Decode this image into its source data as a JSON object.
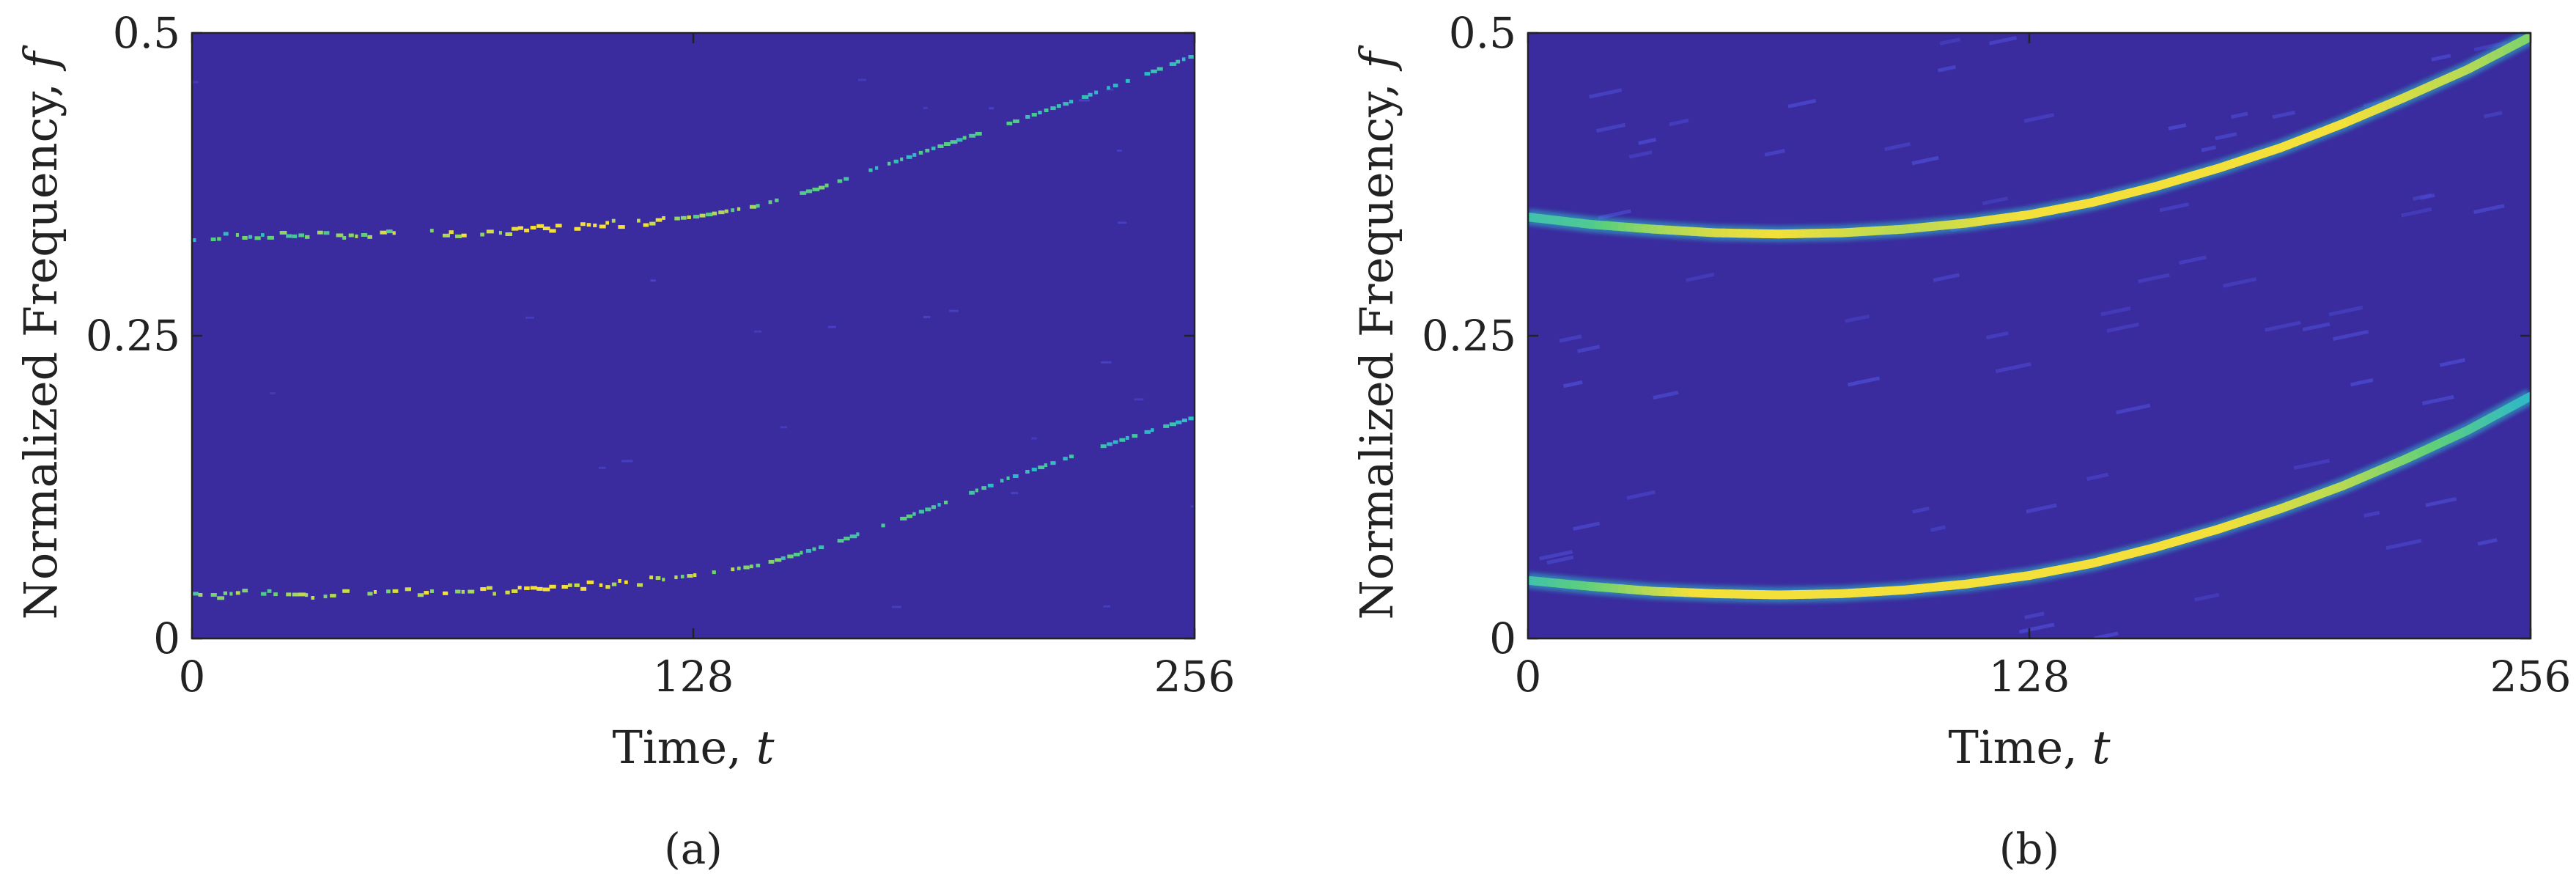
{
  "colors": {
    "background": "#3a2b9e",
    "low": "#4a46cc",
    "mid": "#2fb8c8",
    "high": "#5fd07a",
    "peak": "#f4e03a",
    "axis": "#222222"
  },
  "chart_data": [
    {
      "type": "heatmap",
      "caption": "(a)",
      "xlabel_text": "Time, ",
      "xlabel_var": "t",
      "ylabel_text": "Normalized Frequency, ",
      "ylabel_var": "f",
      "xlim": [
        0,
        256
      ],
      "ylim": [
        0,
        0.5
      ],
      "xticks": [
        0,
        128,
        256
      ],
      "xtick_labels": [
        "0",
        "128",
        "256"
      ],
      "yticks": [
        0,
        0.25,
        0.5
      ],
      "ytick_labels": [
        "0",
        "0.25",
        "0.5"
      ],
      "grid": false,
      "colormap": "parula",
      "ridge_style": "sparse",
      "ridges": [
        {
          "x": [
            0,
            16,
            32,
            48,
            64,
            80,
            96,
            112,
            128,
            144,
            160,
            176,
            192,
            208,
            224,
            240,
            256
          ],
          "y": [
            0.33,
            0.333,
            0.332,
            0.333,
            0.334,
            0.336,
            0.34,
            0.343,
            0.348,
            0.357,
            0.372,
            0.39,
            0.408,
            0.425,
            0.443,
            0.462,
            0.482
          ],
          "intensity": [
            0.5,
            0.55,
            0.6,
            0.7,
            0.75,
            0.85,
            0.95,
            0.9,
            0.7,
            0.6,
            0.55,
            0.5,
            0.5,
            0.5,
            0.45,
            0.45,
            0.4
          ]
        },
        {
          "x": [
            0,
            16,
            32,
            48,
            64,
            80,
            96,
            112,
            128,
            144,
            160,
            176,
            192,
            208,
            224,
            240,
            256
          ],
          "y": [
            0.035,
            0.037,
            0.036,
            0.037,
            0.038,
            0.04,
            0.043,
            0.046,
            0.052,
            0.06,
            0.075,
            0.093,
            0.112,
            0.132,
            0.15,
            0.167,
            0.183
          ],
          "intensity": [
            0.6,
            0.65,
            0.7,
            0.75,
            0.8,
            0.9,
            0.95,
            0.85,
            0.7,
            0.6,
            0.55,
            0.5,
            0.5,
            0.45,
            0.45,
            0.45,
            0.4
          ]
        }
      ]
    },
    {
      "type": "heatmap",
      "caption": "(b)",
      "xlabel_text": "Time, ",
      "xlabel_var": "t",
      "ylabel_text": "Normalized Frequency, ",
      "ylabel_var": "f",
      "xlim": [
        0,
        256
      ],
      "ylim": [
        0,
        0.5
      ],
      "xticks": [
        0,
        128,
        256
      ],
      "xtick_labels": [
        "0",
        "128",
        "256"
      ],
      "yticks": [
        0,
        0.25,
        0.5
      ],
      "ytick_labels": [
        "0",
        "0.25",
        "0.5"
      ],
      "grid": false,
      "colormap": "parula",
      "ridge_style": "smooth",
      "ridges": [
        {
          "x": [
            0,
            16,
            32,
            48,
            64,
            80,
            96,
            112,
            128,
            144,
            160,
            176,
            192,
            208,
            224,
            240,
            256
          ],
          "y": [
            0.348,
            0.342,
            0.338,
            0.335,
            0.334,
            0.335,
            0.338,
            0.343,
            0.35,
            0.36,
            0.373,
            0.388,
            0.405,
            0.425,
            0.447,
            0.47,
            0.497
          ],
          "intensity": [
            0.45,
            0.5,
            0.65,
            0.75,
            0.8,
            0.75,
            0.7,
            0.75,
            0.8,
            0.85,
            0.9,
            0.9,
            0.85,
            0.8,
            0.75,
            0.7,
            0.6
          ]
        },
        {
          "x": [
            0,
            16,
            32,
            48,
            64,
            80,
            96,
            112,
            128,
            144,
            160,
            176,
            192,
            208,
            224,
            240,
            256
          ],
          "y": [
            0.048,
            0.043,
            0.039,
            0.037,
            0.036,
            0.037,
            0.04,
            0.045,
            0.052,
            0.062,
            0.075,
            0.09,
            0.107,
            0.126,
            0.148,
            0.172,
            0.2
          ],
          "intensity": [
            0.45,
            0.55,
            0.7,
            0.85,
            0.95,
            0.9,
            0.85,
            0.9,
            0.9,
            0.85,
            0.85,
            0.8,
            0.75,
            0.7,
            0.6,
            0.5,
            0.4
          ]
        }
      ]
    }
  ]
}
